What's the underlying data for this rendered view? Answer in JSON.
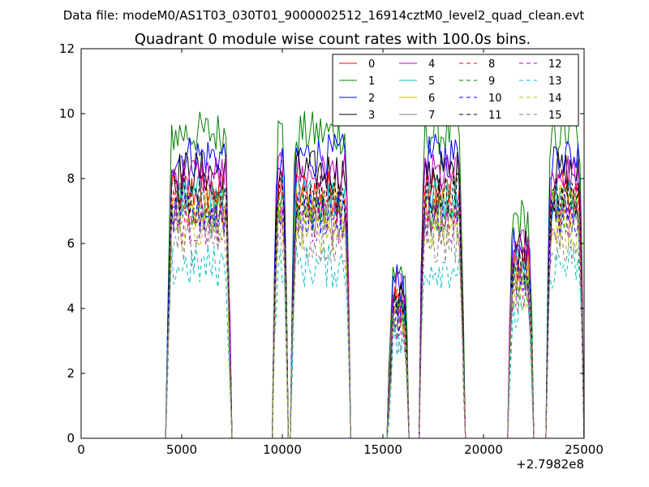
{
  "figure": {
    "header": "Data file: modeM0/AS1T03_030T01_9000002512_16914cztM0_level2_quad_clean.evt"
  },
  "chart_data": {
    "type": "line",
    "title": "Quadrant 0 module wise count rates with 100.0s bins.",
    "xlabel": "",
    "ylabel": "",
    "xlim": [
      0,
      25000
    ],
    "ylim": [
      0,
      12
    ],
    "x_offset_label": "+2.7982e8",
    "xticks": [
      0,
      5000,
      10000,
      15000,
      20000,
      25000
    ],
    "xtick_labels": [
      "0",
      "5000",
      "10000",
      "15000",
      "20000",
      "25000"
    ],
    "yticks": [
      0,
      2,
      4,
      6,
      8,
      10,
      12
    ],
    "ytick_labels": [
      "0",
      "2",
      "4",
      "6",
      "8",
      "10",
      "12"
    ],
    "grid": false,
    "legend_position": "top-right",
    "segments": [
      {
        "start": 4300,
        "end": 7400
      },
      {
        "start": 9550,
        "end": 10250
      },
      {
        "start": 10450,
        "end": 13350
      },
      {
        "start": 15300,
        "end": 16250
      },
      {
        "start": 16850,
        "end": 19000
      },
      {
        "start": 21250,
        "end": 22450
      },
      {
        "start": 23150,
        "end": 24950
      }
    ],
    "series": [
      {
        "name": "0",
        "color": "#ff0000",
        "dash": "solid",
        "level": 7.6
      },
      {
        "name": "1",
        "color": "#008000",
        "dash": "solid",
        "level": 9.4
      },
      {
        "name": "2",
        "color": "#0000ff",
        "dash": "solid",
        "level": 8.7
      },
      {
        "name": "3",
        "color": "#000000",
        "dash": "solid",
        "level": 8.2
      },
      {
        "name": "4",
        "color": "#c000c0",
        "dash": "solid",
        "level": 8.1
      },
      {
        "name": "5",
        "color": "#00bfbf",
        "dash": "solid",
        "level": 7.4
      },
      {
        "name": "6",
        "color": "#bfbf00",
        "dash": "solid",
        "level": 7.1
      },
      {
        "name": "7",
        "color": "#808080",
        "dash": "solid",
        "level": 6.8
      },
      {
        "name": "8",
        "color": "#ff0000",
        "dash": "dashed",
        "level": 7.2
      },
      {
        "name": "9",
        "color": "#008000",
        "dash": "dashed",
        "level": 7.0
      },
      {
        "name": "10",
        "color": "#0000ff",
        "dash": "dashed",
        "level": 6.9
      },
      {
        "name": "11",
        "color": "#000000",
        "dash": "dashed",
        "level": 7.5
      },
      {
        "name": "12",
        "color": "#c000c0",
        "dash": "dashed",
        "level": 6.6
      },
      {
        "name": "13",
        "color": "#00bfbf",
        "dash": "dashed",
        "level": 5.3
      },
      {
        "name": "14",
        "color": "#bfbf00",
        "dash": "dashed",
        "level": 6.4
      },
      {
        "name": "15",
        "color": "#808080",
        "dash": "dashed",
        "level": 6.0
      }
    ]
  }
}
